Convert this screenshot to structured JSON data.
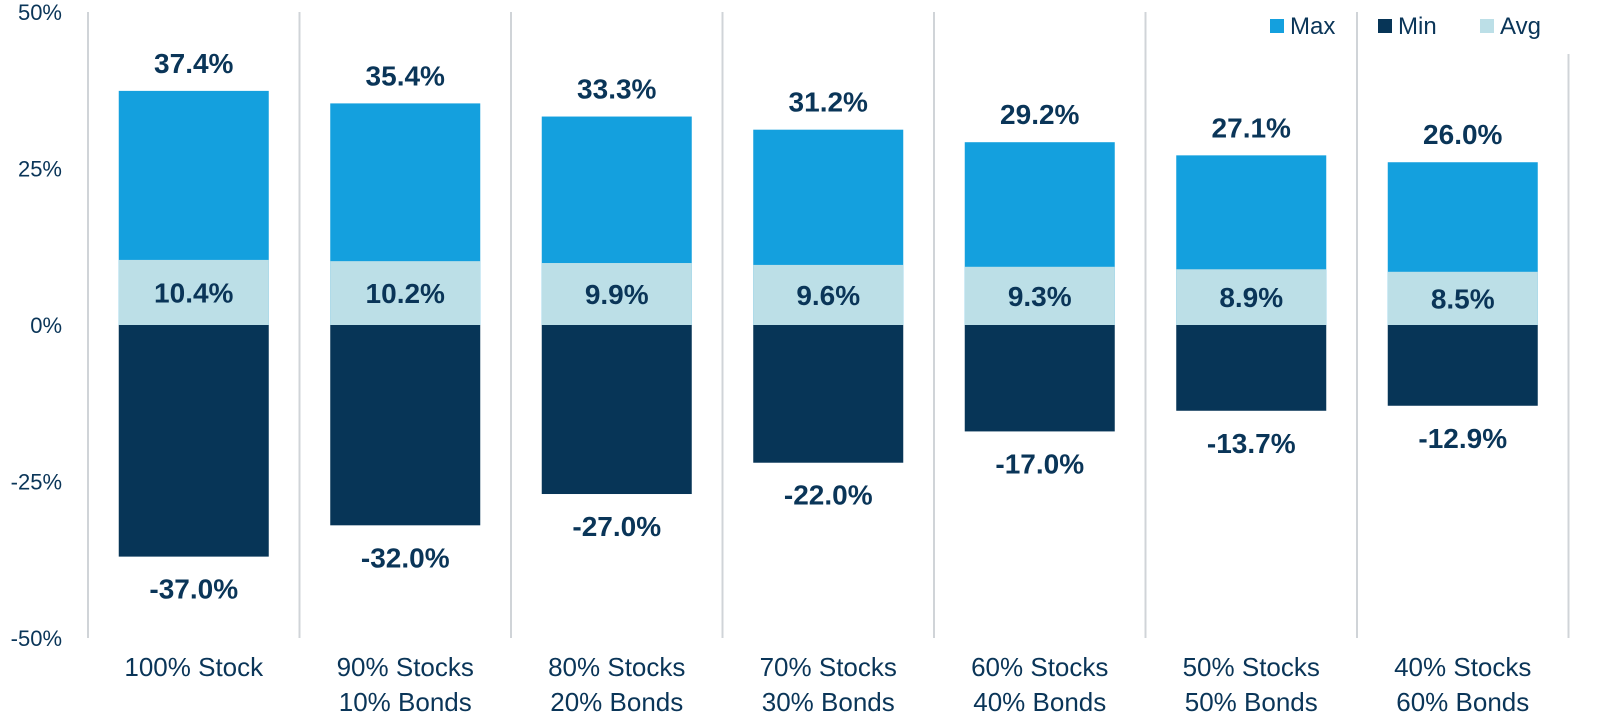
{
  "chart_data": {
    "type": "bar",
    "stacked": true,
    "categories": [
      [
        "100% Stock"
      ],
      [
        "90% Stocks",
        "10% Bonds"
      ],
      [
        "80% Stocks",
        "20% Bonds"
      ],
      [
        "70% Stocks",
        "30% Bonds"
      ],
      [
        "60% Stocks",
        "40% Bonds"
      ],
      [
        "50% Stocks",
        "50% Bonds"
      ],
      [
        "40% Stocks",
        "60% Bonds"
      ]
    ],
    "series": [
      {
        "name": "Max",
        "color": "#14a0de",
        "values": [
          37.4,
          35.4,
          33.3,
          31.2,
          29.2,
          27.1,
          26.0
        ],
        "labels": [
          "37.4%",
          "35.4%",
          "33.3%",
          "31.2%",
          "29.2%",
          "27.1%",
          "26.0%"
        ]
      },
      {
        "name": "Min",
        "color": "#073557",
        "values": [
          -37.0,
          -32.0,
          -27.0,
          -22.0,
          -17.0,
          -13.7,
          -12.9
        ],
        "labels": [
          "-37.0%",
          "-32.0%",
          "-27.0%",
          "-22.0%",
          "-17.0%",
          "-13.7%",
          "-12.9%"
        ]
      },
      {
        "name": "Avg",
        "color": "#bcdfe7",
        "values": [
          10.4,
          10.2,
          9.9,
          9.6,
          9.3,
          8.9,
          8.5
        ],
        "labels": [
          "10.4%",
          "10.2%",
          "9.9%",
          "9.6%",
          "9.3%",
          "8.9%",
          "8.5%"
        ]
      }
    ],
    "yticks": [
      50,
      25,
      0,
      -25,
      -50
    ],
    "ytick_labels": [
      "50%",
      "25%",
      "0%",
      "-25%",
      "-50%"
    ],
    "ylim": [
      -50,
      50
    ],
    "grid": false,
    "legend_position": "top-right",
    "text_color": "#0a3558"
  }
}
